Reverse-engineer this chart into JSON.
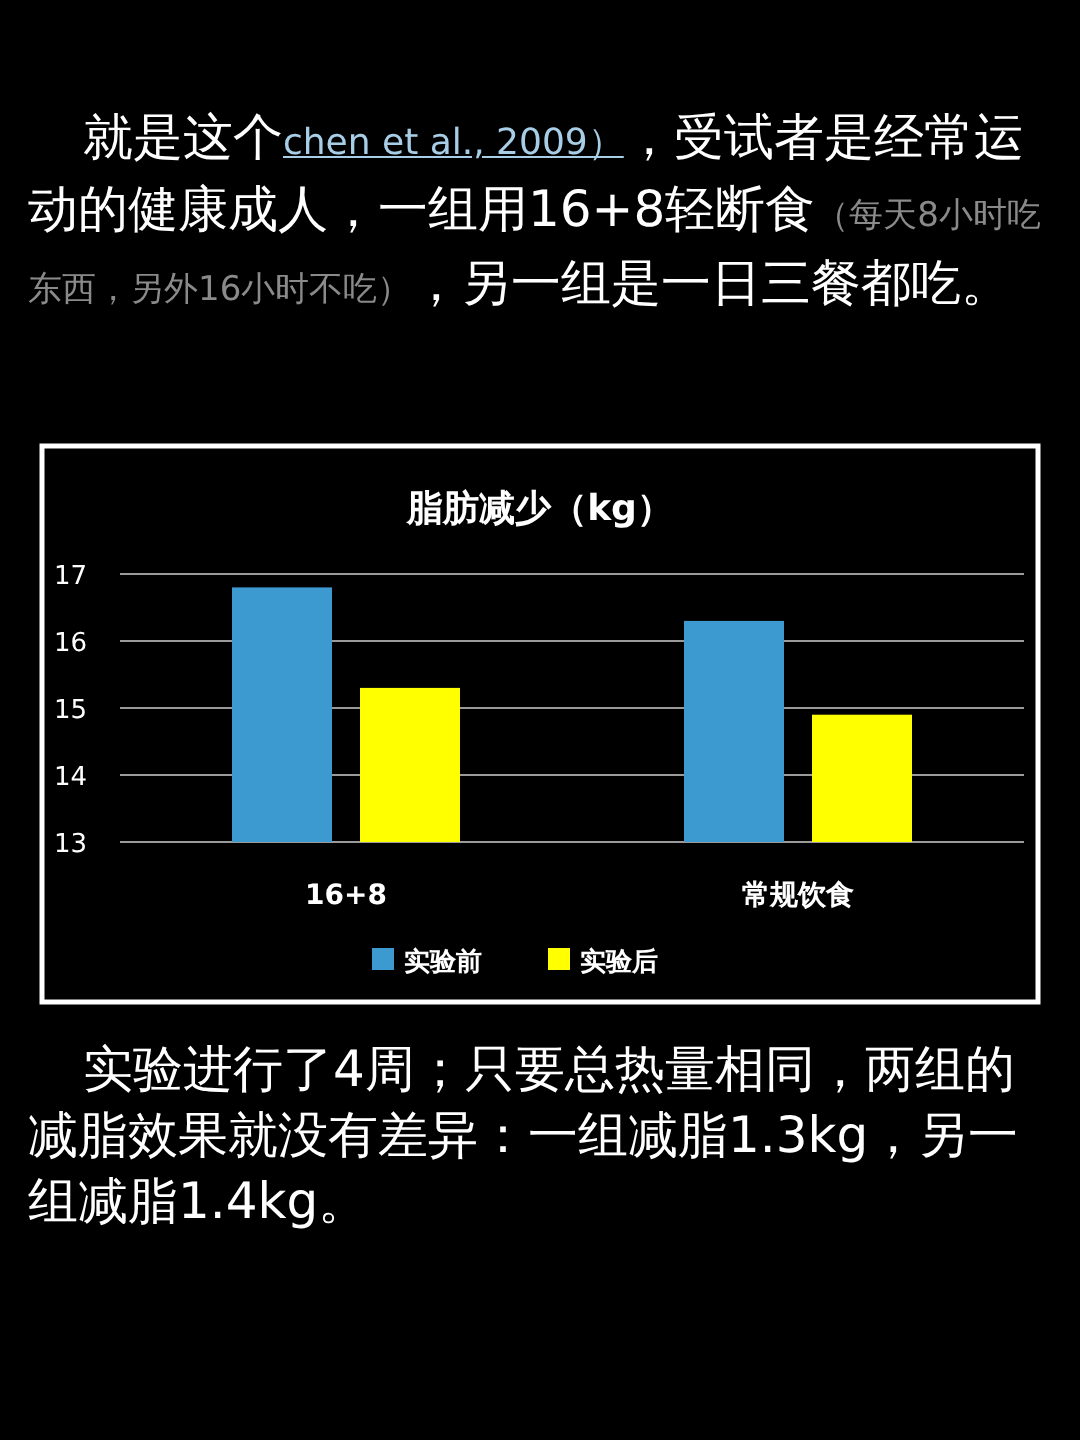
{
  "chart_data": {
    "type": "bar",
    "title": "脂肪减少（kg）",
    "categories": [
      "16+8",
      "常规饮食"
    ],
    "series": [
      {
        "name": "实验前",
        "color": "#3c9ad0",
        "values": [
          16.8,
          16.3
        ]
      },
      {
        "name": "实验后",
        "color": "#ffff00",
        "values": [
          15.3,
          14.9
        ]
      }
    ],
    "ylim": [
      13,
      17
    ],
    "yticks": [
      13,
      14,
      15,
      16,
      17
    ],
    "grid": "y",
    "legend": "bottom",
    "annotations": [
      "就是这个",
      "chen et al., 2009）",
      "，受试者是经常运动的健康成人，一组用16+8轻断食",
      "（每天8小时吃东西，另外16小时不吃）",
      "，另一组是一日三餐都吃。",
      "实验进行了4周；只要总热量相同，两组的减脂效果就没有差异：一组减脂1.3kg，另一组减脂1.4kg。"
    ]
  }
}
